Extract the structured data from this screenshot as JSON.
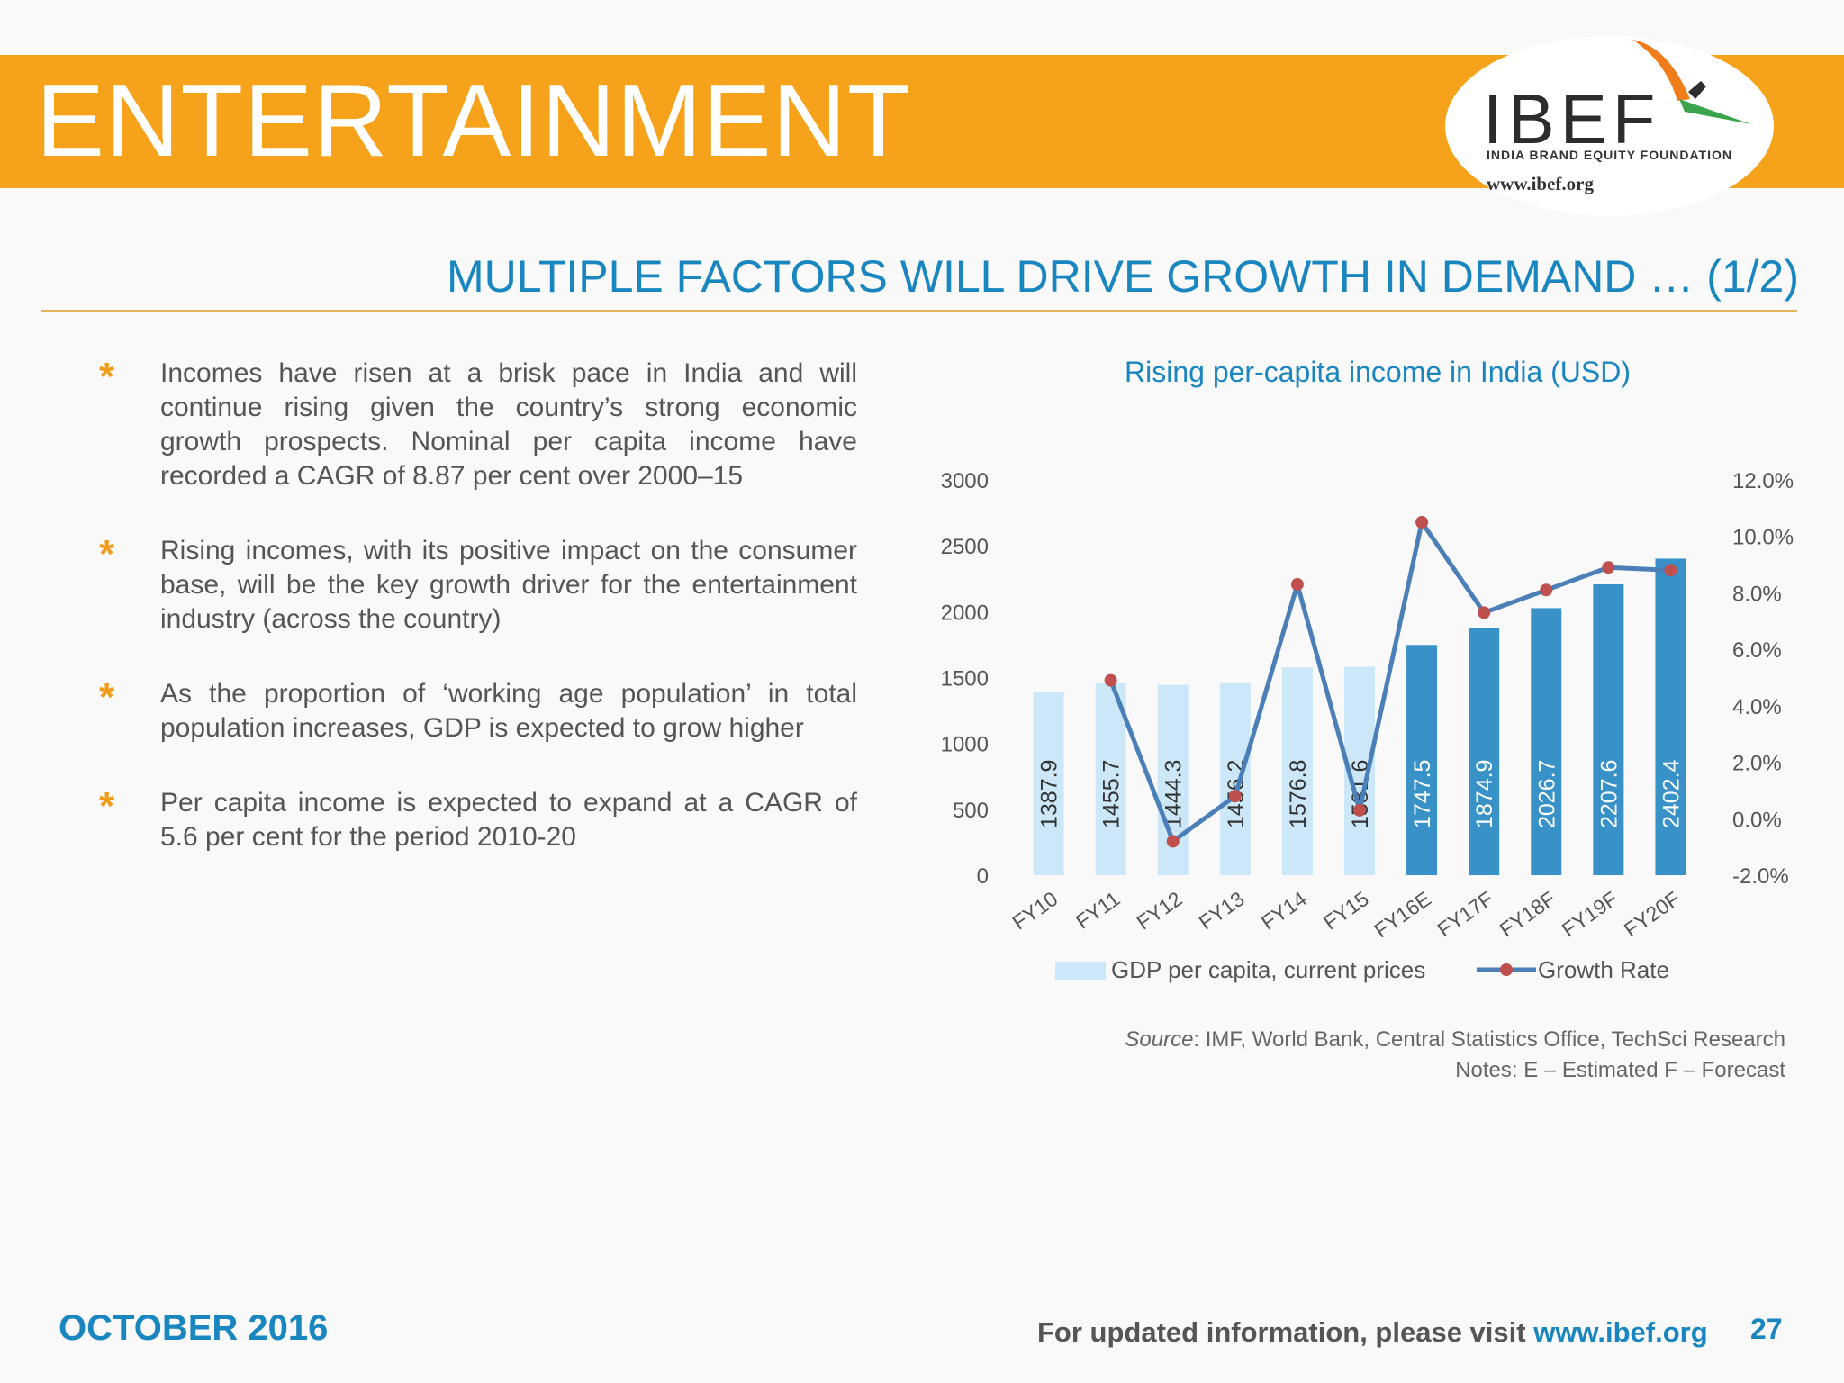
{
  "header": {
    "title": "ENTERTAINMENT",
    "logo": {
      "name": "IBEF",
      "subtitle": "INDIA BRAND EQUITY FOUNDATION",
      "url": "www.ibef.org"
    }
  },
  "slide_title": "MULTIPLE FACTORS WILL DRIVE GROWTH IN DEMAND … (1/2)",
  "bullets": [
    "Incomes have risen at a brisk pace in India and will continue rising given the country’s strong economic growth prospects. Nominal per capita income have recorded a CAGR of 8.87 per cent over 2000–15",
    "Rising incomes, with its positive impact on the consumer base, will be the key growth driver for the entertainment industry (across the country)",
    "As the proportion of ‘working age population’ in total population increases, GDP is expected to grow higher",
    "Per capita income is expected to expand at a CAGR of 5.6 per cent for the period 2010-20"
  ],
  "chart_data": {
    "type": "bar",
    "title": "Rising per-capita income in India (USD)",
    "categories": [
      "FY10",
      "FY11",
      "FY12",
      "FY13",
      "FY14",
      "FY15",
      "FY16E",
      "FY17F",
      "FY18F",
      "FY19F",
      "FY20F"
    ],
    "series": [
      {
        "name": "GDP per capita, current prices",
        "type": "bar",
        "axis": "left",
        "values": [
          1387.9,
          1455.7,
          1444.3,
          1456.2,
          1576.8,
          1581.6,
          1747.5,
          1874.9,
          2026.7,
          2207.6,
          2402.4
        ],
        "labels": [
          "1387.9",
          "1455.7",
          "1444.3",
          "1456.2",
          "1576.8",
          "1581.6",
          "1747.5",
          "1874.9",
          "2026.7",
          "2207.6",
          "2402.4"
        ]
      },
      {
        "name": "Growth Rate",
        "type": "line",
        "axis": "right",
        "values": [
          null,
          4.9,
          -0.8,
          0.8,
          8.3,
          0.3,
          10.5,
          7.3,
          8.1,
          8.9,
          8.8
        ]
      }
    ],
    "y_left": {
      "min": 0,
      "max": 3000,
      "ticks": [
        "0",
        "500",
        "1000",
        "1500",
        "2000",
        "2500",
        "3000"
      ]
    },
    "y_right": {
      "min": -2,
      "max": 12,
      "ticks": [
        "-2.0%",
        "0.0%",
        "2.0%",
        "4.0%",
        "6.0%",
        "8.0%",
        "10.0%",
        "12.0%"
      ]
    },
    "legend_position": "bottom",
    "colors": {
      "actual": "#cce8f8",
      "forecast": "#3892c8",
      "line": "#4a7fb8",
      "marker": "#c0504d"
    },
    "forecast_start_index": 6
  },
  "source": {
    "label": "Source",
    "text": ": IMF, World Bank, Central Statistics Office, TechSci Research"
  },
  "notes": "Notes: E – Estimated   F – Forecast",
  "footer": {
    "date": "OCTOBER 2016",
    "visit_text": "For updated information, please visit ",
    "visit_link": "www.ibef.org",
    "page": "27"
  }
}
